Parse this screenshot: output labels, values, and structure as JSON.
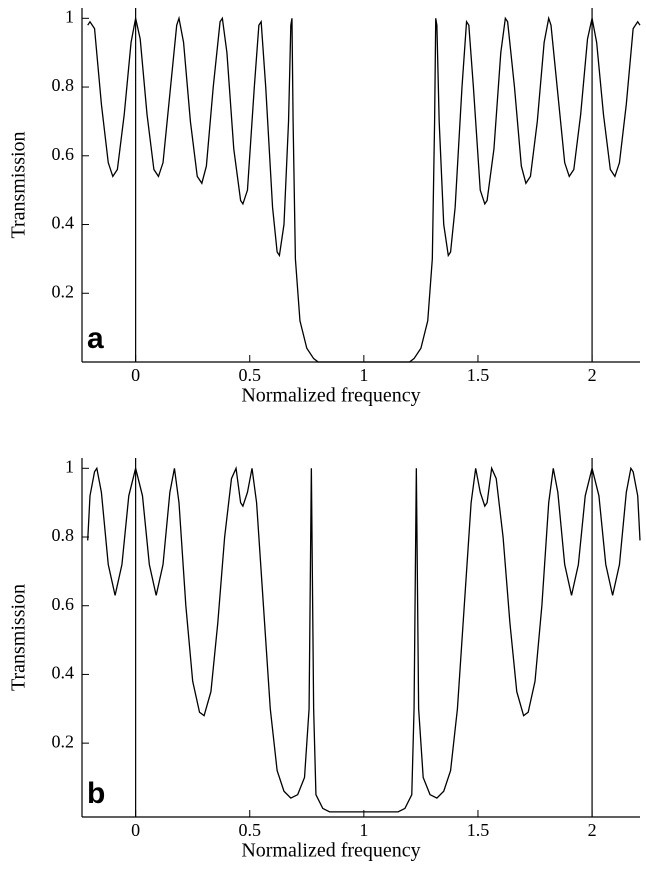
{
  "chart_data": [
    {
      "type": "line",
      "panel_label": "a",
      "x_label": "Normalized frequency",
      "y_label": "Transmission",
      "color": "#000000",
      "xlim": [
        -0.235,
        2.21
      ],
      "ylim": [
        0,
        1.03
      ],
      "xticks": [
        0,
        0.5,
        1,
        1.5,
        2
      ],
      "yticks": [
        0.2,
        0.4,
        0.6,
        0.8,
        1
      ],
      "vlines": [
        0,
        2
      ],
      "x": [
        -0.21,
        -0.2,
        -0.18,
        -0.15,
        -0.12,
        -0.1,
        -0.08,
        -0.05,
        -0.02,
        0,
        0.02,
        0.05,
        0.08,
        0.1,
        0.12,
        0.15,
        0.18,
        0.19,
        0.21,
        0.24,
        0.27,
        0.29,
        0.31,
        0.34,
        0.37,
        0.38,
        0.4,
        0.43,
        0.46,
        0.47,
        0.49,
        0.52,
        0.54,
        0.55,
        0.57,
        0.6,
        0.62,
        0.63,
        0.65,
        0.67,
        0.68,
        0.685,
        0.69,
        0.7,
        0.72,
        0.75,
        0.78,
        0.8,
        1.0,
        1.2,
        1.22,
        1.25,
        1.28,
        1.3,
        1.31,
        1.315,
        1.32,
        1.33,
        1.35,
        1.37,
        1.38,
        1.4,
        1.43,
        1.45,
        1.46,
        1.48,
        1.51,
        1.53,
        1.54,
        1.57,
        1.6,
        1.62,
        1.63,
        1.66,
        1.69,
        1.71,
        1.73,
        1.76,
        1.79,
        1.81,
        1.82,
        1.85,
        1.88,
        1.9,
        1.92,
        1.95,
        1.98,
        2,
        2.02,
        2.05,
        2.08,
        2.1,
        2.12,
        2.15,
        2.18,
        2.2,
        2.21
      ],
      "values": [
        0.98,
        0.99,
        0.97,
        0.75,
        0.58,
        0.54,
        0.56,
        0.72,
        0.93,
        1.0,
        0.94,
        0.72,
        0.56,
        0.54,
        0.58,
        0.78,
        0.98,
        1.0,
        0.93,
        0.7,
        0.54,
        0.52,
        0.57,
        0.8,
        0.99,
        1.0,
        0.9,
        0.62,
        0.47,
        0.46,
        0.5,
        0.8,
        0.98,
        0.99,
        0.8,
        0.45,
        0.32,
        0.31,
        0.4,
        0.7,
        0.98,
        1.0,
        0.7,
        0.3,
        0.12,
        0.04,
        0.01,
        0,
        0,
        0,
        0.01,
        0.04,
        0.12,
        0.3,
        0.7,
        1.0,
        0.98,
        0.7,
        0.4,
        0.31,
        0.32,
        0.45,
        0.8,
        0.99,
        0.98,
        0.8,
        0.5,
        0.46,
        0.47,
        0.62,
        0.9,
        1.0,
        0.99,
        0.8,
        0.57,
        0.52,
        0.54,
        0.7,
        0.93,
        1.0,
        0.98,
        0.78,
        0.58,
        0.54,
        0.56,
        0.72,
        0.94,
        1.0,
        0.93,
        0.72,
        0.56,
        0.54,
        0.58,
        0.75,
        0.97,
        0.99,
        0.98
      ]
    },
    {
      "type": "line",
      "panel_label": "b",
      "x_label": "Normalized frequency",
      "y_label": "Transmission",
      "color": "#000000",
      "xlim": [
        -0.235,
        2.21
      ],
      "ylim": [
        -0.015,
        1.03
      ],
      "xticks": [
        0,
        0.5,
        1,
        1.5,
        2
      ],
      "yticks": [
        0.2,
        0.4,
        0.6,
        0.8,
        1
      ],
      "vlines": [
        0,
        2
      ],
      "x": [
        -0.21,
        -0.2,
        -0.18,
        -0.17,
        -0.15,
        -0.12,
        -0.09,
        -0.06,
        -0.03,
        0,
        0.03,
        0.06,
        0.09,
        0.12,
        0.15,
        0.17,
        0.19,
        0.22,
        0.25,
        0.28,
        0.3,
        0.33,
        0.36,
        0.39,
        0.42,
        0.44,
        0.46,
        0.47,
        0.49,
        0.51,
        0.53,
        0.56,
        0.59,
        0.62,
        0.65,
        0.68,
        0.71,
        0.74,
        0.76,
        0.77,
        0.78,
        0.79,
        0.82,
        0.85,
        1.0,
        1.15,
        1.18,
        1.21,
        1.22,
        1.23,
        1.24,
        1.26,
        1.29,
        1.32,
        1.35,
        1.38,
        1.41,
        1.44,
        1.47,
        1.49,
        1.51,
        1.53,
        1.54,
        1.56,
        1.58,
        1.61,
        1.64,
        1.67,
        1.7,
        1.72,
        1.75,
        1.78,
        1.81,
        1.83,
        1.85,
        1.88,
        1.91,
        1.94,
        1.97,
        2,
        2.03,
        2.06,
        2.09,
        2.12,
        2.15,
        2.17,
        2.18,
        2.2,
        2.21
      ],
      "values": [
        0.79,
        0.92,
        0.99,
        1.0,
        0.93,
        0.72,
        0.63,
        0.72,
        0.92,
        1.0,
        0.92,
        0.72,
        0.63,
        0.72,
        0.93,
        1.0,
        0.9,
        0.6,
        0.38,
        0.29,
        0.28,
        0.35,
        0.55,
        0.8,
        0.97,
        1.0,
        0.9,
        0.89,
        0.93,
        1.0,
        0.9,
        0.6,
        0.3,
        0.12,
        0.06,
        0.04,
        0.05,
        0.1,
        0.3,
        1.0,
        0.3,
        0.05,
        0.01,
        0,
        0,
        0,
        0.01,
        0.05,
        0.3,
        1.0,
        0.3,
        0.1,
        0.05,
        0.04,
        0.06,
        0.12,
        0.3,
        0.6,
        0.9,
        1.0,
        0.93,
        0.89,
        0.9,
        1.0,
        0.97,
        0.8,
        0.55,
        0.35,
        0.28,
        0.29,
        0.38,
        0.6,
        0.9,
        1.0,
        0.93,
        0.72,
        0.63,
        0.72,
        0.92,
        1.0,
        0.92,
        0.72,
        0.63,
        0.72,
        0.93,
        1.0,
        0.99,
        0.92,
        0.79
      ]
    }
  ]
}
